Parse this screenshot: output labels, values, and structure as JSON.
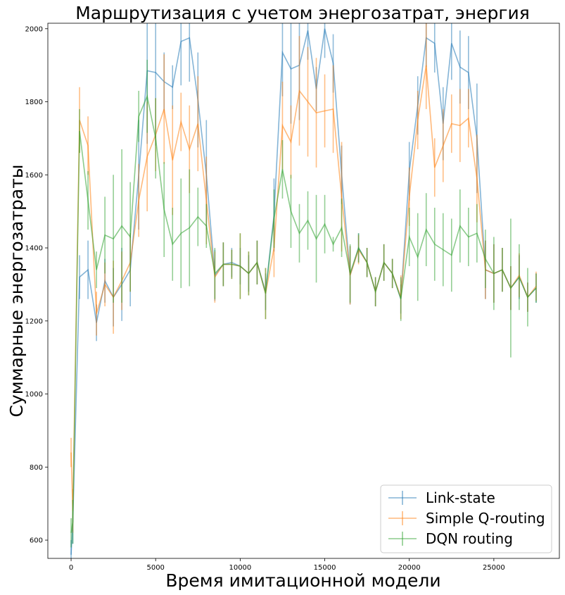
{
  "chart_data": {
    "type": "line",
    "title": "Маршрутизация с учетом энергозатрат, энергия",
    "xlabel": "Время имитационной модели",
    "ylabel": "Суммарные энергозатраты",
    "xlim": [
      -1375,
      28875
    ],
    "ylim": [
      550,
      2015
    ],
    "xticks": [
      0,
      5000,
      10000,
      15000,
      20000,
      25000
    ],
    "yticks": [
      600,
      800,
      1000,
      1200,
      1400,
      1600,
      1800,
      2000
    ],
    "grid": false,
    "legend_position": "bottom-right",
    "x": [
      0,
      100,
      500,
      1000,
      1500,
      2000,
      2500,
      3000,
      3500,
      4000,
      4500,
      5000,
      5500,
      6000,
      6500,
      7000,
      7500,
      8000,
      8500,
      9000,
      9500,
      10000,
      10500,
      11000,
      11500,
      12000,
      12500,
      13000,
      13500,
      14000,
      14500,
      15000,
      15500,
      16000,
      16500,
      17000,
      17500,
      18000,
      18500,
      19000,
      19500,
      20000,
      20500,
      21000,
      21500,
      22000,
      22500,
      23000,
      23500,
      24000,
      24500,
      25000,
      25500,
      26000,
      26500,
      27000,
      27500
    ],
    "series": [
      {
        "name": "Link-state",
        "color": "#1f77b4",
        "values": [
          560,
          650,
          1320,
          1340,
          1195,
          1310,
          1265,
          1300,
          1340,
          1600,
          1885,
          1880,
          1855,
          1840,
          1965,
          1975,
          1805,
          1600,
          1325,
          1355,
          1360,
          1350,
          1330,
          1360,
          1280,
          1490,
          1935,
          1890,
          1900,
          1995,
          1835,
          2000,
          1905,
          1600,
          1325,
          1400,
          1360,
          1280,
          1360,
          1330,
          1260,
          1610,
          1790,
          1975,
          1960,
          1740,
          1960,
          1895,
          1880,
          1700,
          1340,
          1330,
          1340,
          1290,
          1320,
          1265,
          1290
        ],
        "errors": [
          40,
          60,
          60,
          80,
          50,
          60,
          80,
          100,
          100,
          150,
          200,
          200,
          80,
          60,
          120,
          120,
          130,
          150,
          70,
          60,
          40,
          50,
          50,
          60,
          50,
          100,
          120,
          150,
          150,
          80,
          60,
          80,
          80,
          80,
          80,
          40,
          40,
          40,
          50,
          40,
          40,
          80,
          80,
          80,
          80,
          100,
          100,
          100,
          100,
          150,
          80,
          80,
          60,
          60,
          60,
          40,
          40
        ]
      },
      {
        "name": "Simple Q-routing",
        "color": "#ff7f0e",
        "values": [
          840,
          680,
          1750,
          1680,
          1220,
          1300,
          1265,
          1310,
          1360,
          1530,
          1650,
          1710,
          1780,
          1640,
          1745,
          1670,
          1740,
          1530,
          1320,
          1355,
          1355,
          1350,
          1330,
          1360,
          1275,
          1400,
          1735,
          1690,
          1830,
          1800,
          1770,
          1775,
          1780,
          1540,
          1325,
          1395,
          1360,
          1280,
          1360,
          1330,
          1265,
          1540,
          1750,
          1900,
          1620,
          1680,
          1740,
          1735,
          1755,
          1590,
          1340,
          1330,
          1340,
          1290,
          1325,
          1265,
          1295
        ],
        "errors": [
          40,
          60,
          90,
          80,
          60,
          60,
          100,
          80,
          80,
          100,
          150,
          100,
          150,
          150,
          80,
          120,
          130,
          120,
          70,
          60,
          40,
          90,
          60,
          60,
          70,
          80,
          120,
          100,
          150,
          150,
          150,
          100,
          120,
          150,
          80,
          40,
          40,
          40,
          50,
          40,
          60,
          80,
          80,
          120,
          80,
          100,
          80,
          100,
          80,
          120,
          80,
          80,
          60,
          60,
          60,
          40,
          40
        ]
      },
      {
        "name": "DQN routing",
        "color": "#2ca02c",
        "values": [
          620,
          650,
          1720,
          1530,
          1340,
          1435,
          1425,
          1460,
          1430,
          1760,
          1815,
          1700,
          1505,
          1410,
          1440,
          1455,
          1485,
          1460,
          1330,
          1355,
          1355,
          1350,
          1330,
          1360,
          1275,
          1480,
          1615,
          1500,
          1440,
          1475,
          1425,
          1465,
          1410,
          1455,
          1330,
          1400,
          1360,
          1280,
          1360,
          1330,
          1260,
          1430,
          1375,
          1450,
          1410,
          1395,
          1380,
          1460,
          1430,
          1440,
          1370,
          1330,
          1340,
          1290,
          1320,
          1265,
          1290
        ],
        "errors": [
          40,
          60,
          60,
          80,
          50,
          105,
          175,
          210,
          150,
          70,
          100,
          110,
          130,
          100,
          150,
          160,
          80,
          60,
          70,
          60,
          40,
          90,
          60,
          60,
          70,
          80,
          80,
          100,
          80,
          80,
          120,
          80,
          20,
          80,
          80,
          40,
          40,
          40,
          50,
          40,
          60,
          80,
          120,
          100,
          100,
          100,
          100,
          100,
          80,
          80,
          80,
          100,
          60,
          190,
          90,
          80,
          40
        ]
      }
    ]
  }
}
